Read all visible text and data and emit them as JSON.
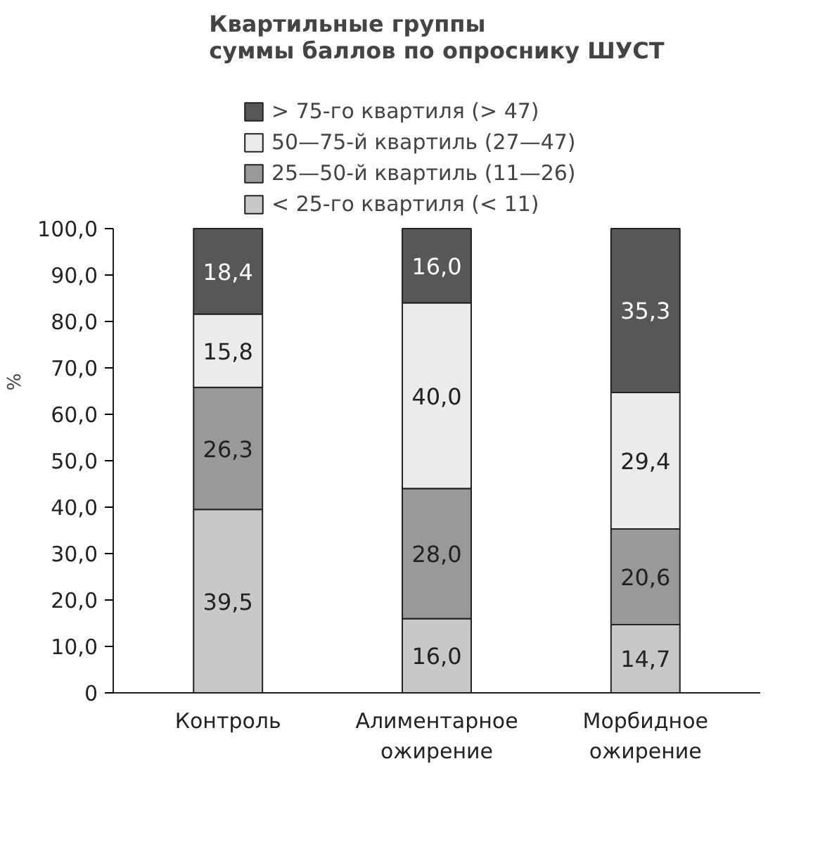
{
  "chart_data": {
    "type": "bar",
    "stacked": true,
    "title": "Квартильные группы\nсуммы баллов по опроснику ШУСТ",
    "ylabel": "%",
    "categories": [
      "Контроль",
      "Алиментарное\nожирение",
      "Морбидное\nожирение"
    ],
    "series": [
      {
        "name": "< 25-го квартиля (< 11)",
        "color": "#c8c8c8",
        "values": [
          39.5,
          16.0,
          14.7
        ],
        "value_labels": [
          "39,5",
          "16,0",
          "14,7"
        ]
      },
      {
        "name": "25—50-й квартиль (11—26)",
        "color": "#999999",
        "values": [
          26.3,
          28.0,
          20.6
        ],
        "value_labels": [
          "26,3",
          "28,0",
          "20,6"
        ]
      },
      {
        "name": "50—75-й квартиль (27—47)",
        "color": "#ebebeb",
        "values": [
          15.8,
          40.0,
          29.4
        ],
        "value_labels": [
          "15,8",
          "40,0",
          "29,4"
        ]
      },
      {
        "name": "> 75-го квартиля (> 47)",
        "color": "#575757",
        "values": [
          18.4,
          16.0,
          35.3
        ],
        "value_labels": [
          "18,4",
          "16,0",
          "35,3"
        ]
      }
    ],
    "ylim": [
      0,
      100
    ],
    "yticks": [
      {
        "value": 0,
        "label": "0"
      },
      {
        "value": 10,
        "label": "10,0"
      },
      {
        "value": 20,
        "label": "20,0"
      },
      {
        "value": 30,
        "label": "30,0"
      },
      {
        "value": 40,
        "label": "40,0"
      },
      {
        "value": 50,
        "label": "50,0"
      },
      {
        "value": 60,
        "label": "60,0"
      },
      {
        "value": 70,
        "label": "70,0"
      },
      {
        "value": 80,
        "label": "80,0"
      },
      {
        "value": 90,
        "label": "90,0"
      },
      {
        "value": 100,
        "label": "100,0"
      }
    ],
    "grid": false,
    "legend": "top"
  }
}
